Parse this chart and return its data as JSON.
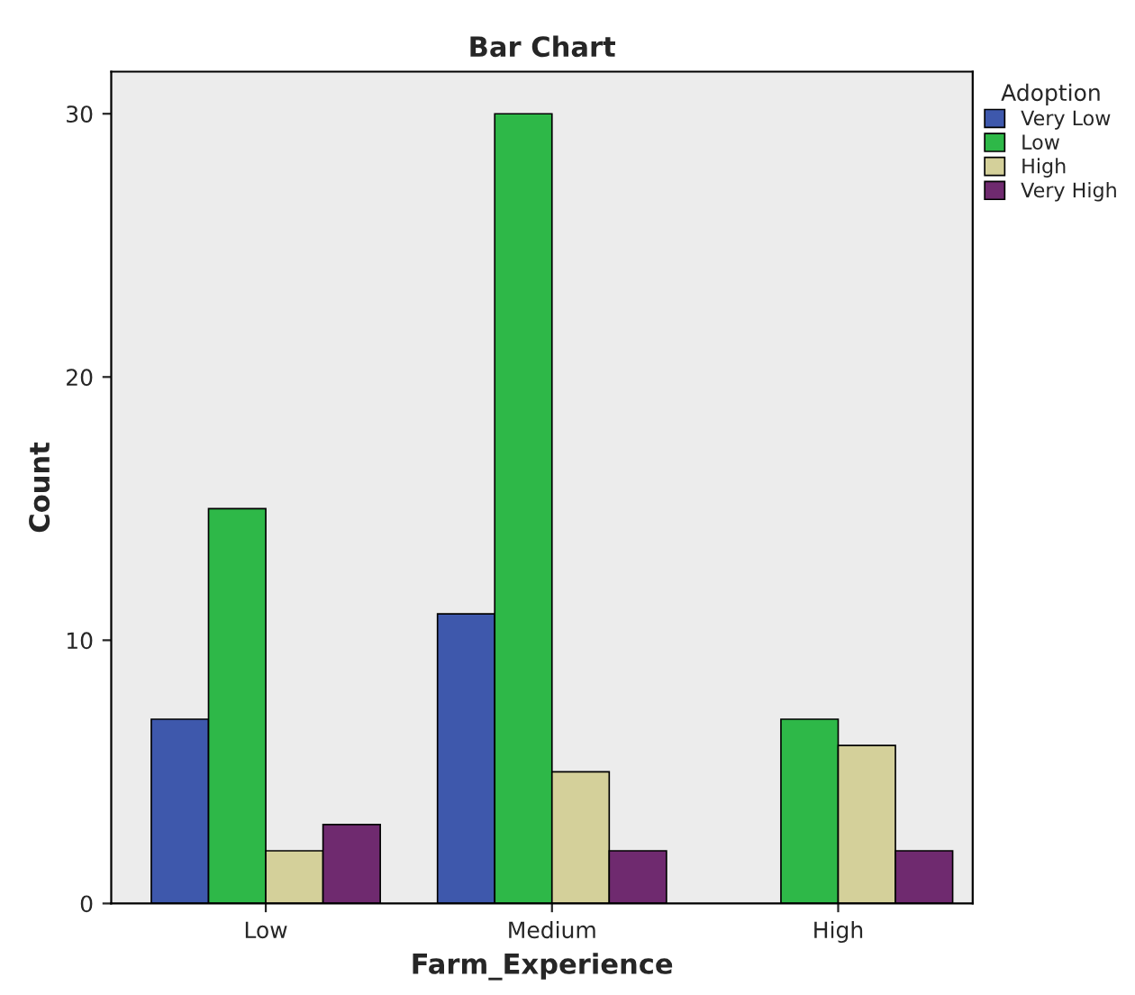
{
  "chart_data": {
    "type": "bar",
    "title": "Bar Chart",
    "xlabel": "Farm_Experience",
    "ylabel": "Count",
    "legend_title": "Adoption",
    "categories": [
      "Low",
      "Medium",
      "High"
    ],
    "series": [
      {
        "name": "Very Low",
        "color": "#3e58ac",
        "values": [
          7,
          11,
          null
        ]
      },
      {
        "name": "Low",
        "color": "#2eb848",
        "values": [
          15,
          30,
          7
        ]
      },
      {
        "name": "High",
        "color": "#d4d09a",
        "values": [
          2,
          5,
          6
        ]
      },
      {
        "name": "Very High",
        "color": "#6f2a6f",
        "values": [
          3,
          2,
          2
        ]
      }
    ],
    "ylim": [
      0,
      31.6
    ],
    "yticks": [
      0,
      10,
      20,
      30
    ],
    "grid": false,
    "legend": "top right"
  }
}
